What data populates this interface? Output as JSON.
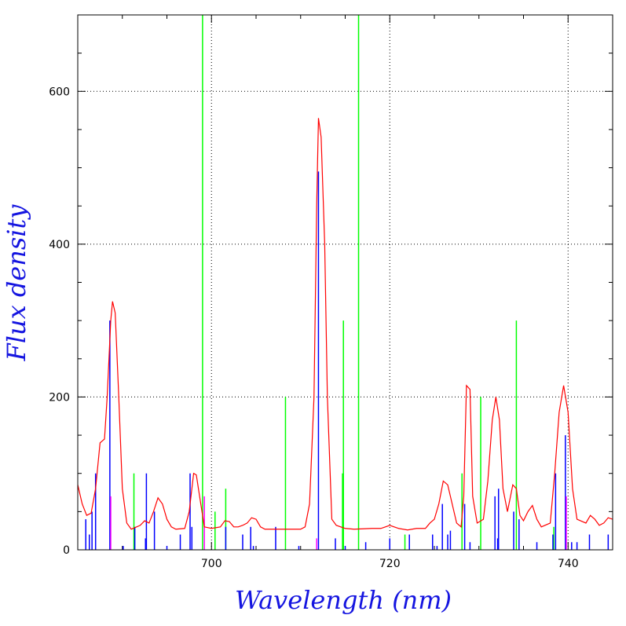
{
  "chart_data": {
    "type": "line",
    "x_label": "Wavelength (nm)",
    "y_label": "Flux density",
    "xlim": [
      685,
      745
    ],
    "ylim": [
      0,
      700
    ],
    "xticks": [
      700,
      720,
      740
    ],
    "yticks": [
      0,
      200,
      400,
      600
    ],
    "xminor_ticks": [
      690,
      695,
      705,
      710,
      715,
      725,
      730,
      735
    ],
    "yminor_ticks": [
      50,
      100,
      150,
      250,
      300,
      350,
      450,
      500,
      550,
      650
    ],
    "grid": true,
    "curve": {
      "color": "#ff0000",
      "x": [
        685,
        685.5,
        686,
        686.5,
        687,
        687.5,
        688,
        688.3,
        688.7,
        688.9,
        689.2,
        689.6,
        690,
        690.5,
        691,
        692,
        692.5,
        693,
        693.5,
        694,
        694.5,
        695,
        695.5,
        696,
        697,
        697.5,
        698,
        698.3,
        698.8,
        699.2,
        700,
        701,
        701.5,
        702,
        702.5,
        703,
        703.5,
        704,
        704.5,
        705,
        705.5,
        706,
        708,
        710,
        710.5,
        711,
        711.5,
        711.8,
        712,
        712.3,
        712.7,
        713,
        713.5,
        714,
        715,
        716,
        718,
        719,
        720,
        721,
        722,
        723,
        724,
        724.5,
        725,
        725.5,
        726,
        726.5,
        727,
        727.5,
        728,
        728.3,
        728.6,
        729,
        729.3,
        729.8,
        730.5,
        731,
        731.5,
        731.9,
        732.3,
        732.7,
        733.2,
        733.8,
        734.2,
        734.6,
        735,
        735.5,
        736,
        736.5,
        737,
        738,
        738.5,
        739,
        739.5,
        740,
        740.5,
        741,
        742,
        742.5,
        743,
        743.5,
        744,
        744.5,
        745
      ],
      "values": [
        85,
        60,
        45,
        48,
        80,
        140,
        145,
        200,
        300,
        325,
        310,
        200,
        80,
        35,
        27,
        32,
        38,
        35,
        50,
        68,
        60,
        40,
        30,
        27,
        28,
        50,
        100,
        98,
        60,
        30,
        28,
        30,
        38,
        37,
        30,
        30,
        32,
        35,
        42,
        40,
        30,
        27,
        27,
        27,
        30,
        60,
        200,
        450,
        565,
        540,
        400,
        200,
        40,
        32,
        28,
        27,
        28,
        28,
        32,
        28,
        26,
        28,
        28,
        35,
        40,
        60,
        90,
        85,
        60,
        35,
        30,
        70,
        215,
        210,
        70,
        35,
        40,
        90,
        170,
        200,
        170,
        80,
        50,
        85,
        80,
        45,
        38,
        50,
        58,
        40,
        30,
        35,
        100,
        180,
        215,
        180,
        80,
        40,
        35,
        45,
        40,
        32,
        35,
        42,
        40
      ]
    },
    "sticks": [
      {
        "color": "#00ff00",
        "x": [
          691.3,
          699,
          700.4,
          701.6,
          708.3,
          714.7,
          714.8,
          716.5,
          721.7,
          728.1,
          730.2,
          734.2,
          738.4
        ],
        "values": [
          100,
          700,
          50,
          80,
          200,
          100,
          300,
          700,
          20,
          100,
          200,
          300,
          30
        ]
      },
      {
        "color": "#0000ff",
        "x": [
          685.9,
          686.3,
          686.6,
          687,
          688.6,
          690.1,
          691.4,
          692.6,
          692.7,
          693.6,
          695,
          696.5,
          697.6,
          697.8,
          701.6,
          703.5,
          704.4,
          704.7,
          707.2,
          709.8,
          712,
          713.9,
          715,
          717.3,
          720,
          722.2,
          724.8,
          725.3,
          725.9,
          726.5,
          726.8,
          728.4,
          729,
          731.8,
          732.1,
          732.2,
          733.9,
          734.5,
          736.5,
          738.3,
          738.6,
          739.7,
          740.4,
          741,
          742.4,
          744.5
        ],
        "values": [
          40,
          20,
          50,
          100,
          300,
          5,
          30,
          15,
          100,
          50,
          5,
          20,
          100,
          30,
          30,
          20,
          30,
          5,
          30,
          5,
          495,
          15,
          5,
          10,
          15,
          20,
          20,
          5,
          60,
          20,
          25,
          60,
          10,
          70,
          15,
          80,
          50,
          40,
          10,
          20,
          100,
          150,
          10,
          10,
          20,
          20
        ]
      },
      {
        "color": "#ff00ff",
        "x": [
          688.7,
          699.2,
          711.8,
          739.8
        ],
        "values": [
          70,
          70,
          15,
          70
        ]
      }
    ]
  }
}
